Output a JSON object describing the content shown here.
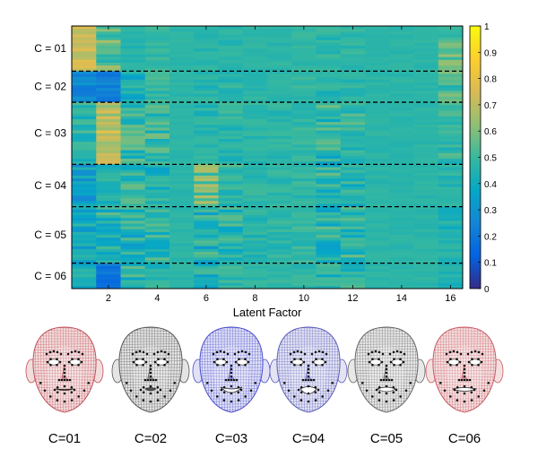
{
  "chart_data": {
    "type": "heatmap",
    "title": "",
    "xlabel": "Latent Factor",
    "ylabel": "",
    "columns": 16,
    "xlim": [
      0.5,
      16.5
    ],
    "xticks": [
      2,
      4,
      6,
      8,
      10,
      12,
      14,
      16
    ],
    "xtick_labels": [
      "2",
      "4",
      "6",
      "8",
      "10",
      "12",
      "14",
      "16"
    ],
    "colormap": "parula",
    "colormap_stops": [
      "#352a87",
      "#0363e1",
      "#1485d4",
      "#06a7c6",
      "#38b99e",
      "#92bf73",
      "#d9ba56",
      "#fcce2e",
      "#f9fb0e"
    ],
    "clim": [
      0,
      1
    ],
    "colorbar_ticks": [
      0,
      0.1,
      0.2,
      0.3,
      0.4,
      0.5,
      0.6,
      0.7,
      0.8,
      0.9,
      1
    ],
    "colorbar_labels": [
      "0",
      "0.1",
      "0.2",
      "0.3",
      "0.4",
      "0.5",
      "0.6",
      "0.7",
      "0.8",
      "0.9",
      "1"
    ],
    "baseline_value": 0.47,
    "groups": [
      {
        "label": "C = 01",
        "rows": 16,
        "means": [
          0.74,
          0.55,
          0.46,
          0.48,
          0.47,
          0.46,
          0.47,
          0.47,
          0.47,
          0.48,
          0.47,
          0.48,
          0.47,
          0.47,
          0.47,
          0.55
        ],
        "spread": [
          0.08,
          0.12,
          0.03,
          0.04,
          0.02,
          0.04,
          0.04,
          0.02,
          0.03,
          0.03,
          0.05,
          0.04,
          0.02,
          0.02,
          0.02,
          0.09
        ]
      },
      {
        "label": "C = 02",
        "rows": 11,
        "means": [
          0.26,
          0.24,
          0.42,
          0.48,
          0.47,
          0.46,
          0.47,
          0.47,
          0.47,
          0.48,
          0.47,
          0.48,
          0.47,
          0.47,
          0.47,
          0.52
        ],
        "spread": [
          0.06,
          0.06,
          0.08,
          0.06,
          0.02,
          0.05,
          0.05,
          0.03,
          0.03,
          0.04,
          0.06,
          0.05,
          0.02,
          0.02,
          0.02,
          0.1
        ]
      },
      {
        "label": "C = 03",
        "rows": 22,
        "means": [
          0.46,
          0.7,
          0.48,
          0.5,
          0.47,
          0.46,
          0.47,
          0.47,
          0.47,
          0.48,
          0.47,
          0.48,
          0.47,
          0.47,
          0.47,
          0.49
        ],
        "spread": [
          0.08,
          0.1,
          0.12,
          0.1,
          0.02,
          0.05,
          0.06,
          0.04,
          0.04,
          0.04,
          0.12,
          0.08,
          0.02,
          0.02,
          0.02,
          0.07
        ]
      },
      {
        "label": "C = 04",
        "rows": 15,
        "means": [
          0.36,
          0.46,
          0.47,
          0.45,
          0.47,
          0.58,
          0.48,
          0.47,
          0.47,
          0.48,
          0.47,
          0.46,
          0.47,
          0.47,
          0.47,
          0.46
        ],
        "spread": [
          0.1,
          0.08,
          0.1,
          0.1,
          0.02,
          0.12,
          0.1,
          0.04,
          0.04,
          0.05,
          0.12,
          0.1,
          0.02,
          0.02,
          0.02,
          0.05
        ]
      },
      {
        "label": "C = 05",
        "rows": 20,
        "means": [
          0.4,
          0.45,
          0.44,
          0.47,
          0.47,
          0.44,
          0.47,
          0.46,
          0.47,
          0.48,
          0.46,
          0.48,
          0.47,
          0.47,
          0.47,
          0.44
        ],
        "spread": [
          0.1,
          0.12,
          0.12,
          0.1,
          0.02,
          0.12,
          0.1,
          0.05,
          0.05,
          0.05,
          0.12,
          0.1,
          0.02,
          0.02,
          0.02,
          0.06
        ]
      },
      {
        "label": "C = 06",
        "rows": 9,
        "means": [
          0.42,
          0.2,
          0.46,
          0.47,
          0.47,
          0.44,
          0.47,
          0.47,
          0.47,
          0.48,
          0.46,
          0.47,
          0.47,
          0.47,
          0.47,
          0.45
        ],
        "spread": [
          0.08,
          0.06,
          0.1,
          0.1,
          0.02,
          0.1,
          0.08,
          0.04,
          0.04,
          0.04,
          0.1,
          0.08,
          0.02,
          0.02,
          0.02,
          0.05
        ]
      }
    ]
  },
  "faces": [
    {
      "label": "C=01",
      "mesh_color": "#c0505a",
      "skin_color": "#f3dede",
      "expression": "neutral"
    },
    {
      "label": "C=02",
      "mesh_color": "#555555",
      "skin_color": "#e4e4e4",
      "expression": "pout"
    },
    {
      "label": "C=03",
      "mesh_color": "#4a4ec8",
      "skin_color": "#e0e1f7",
      "expression": "smile"
    },
    {
      "label": "C=04",
      "mesh_color": "#5a5eb8",
      "skin_color": "#e3e3f4",
      "expression": "open"
    },
    {
      "label": "C=05",
      "mesh_color": "#666666",
      "skin_color": "#e8e8e8",
      "expression": "teeth"
    },
    {
      "label": "C=06",
      "mesh_color": "#c85a64",
      "skin_color": "#f4e0e0",
      "expression": "wide"
    }
  ]
}
